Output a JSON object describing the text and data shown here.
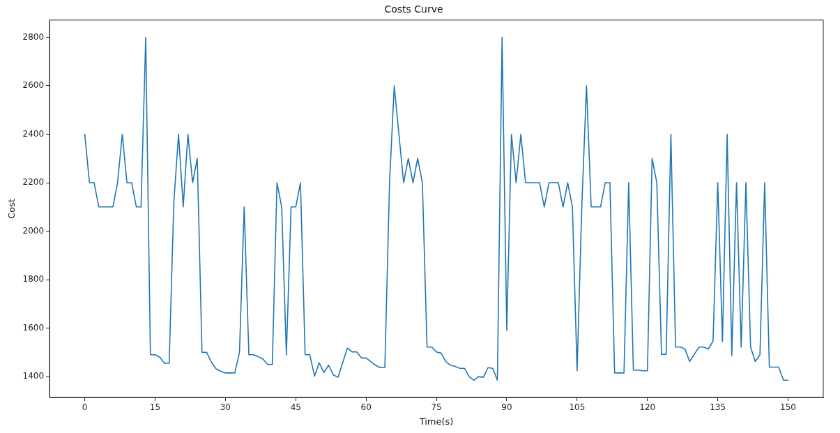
{
  "chart_data": {
    "type": "line",
    "title": "Costs Curve",
    "xlabel": "Time(s)",
    "ylabel": "Cost",
    "x": [
      0,
      1,
      2,
      3,
      4,
      5,
      6,
      7,
      8,
      9,
      10,
      11,
      12,
      13,
      14,
      15,
      16,
      17,
      18,
      19,
      20,
      21,
      22,
      23,
      24,
      25,
      26,
      27,
      28,
      29,
      30,
      31,
      32,
      33,
      34,
      35,
      36,
      37,
      38,
      39,
      40,
      41,
      42,
      43,
      44,
      45,
      46,
      47,
      48,
      49,
      50,
      51,
      52,
      53,
      54,
      55,
      56,
      57,
      58,
      59,
      60,
      61,
      62,
      63,
      64,
      65,
      66,
      67,
      68,
      69,
      70,
      71,
      72,
      73,
      74,
      75,
      76,
      77,
      78,
      79,
      80,
      81,
      82,
      83,
      84,
      85,
      86,
      87,
      88,
      89,
      90,
      91,
      92,
      93,
      94,
      95,
      96,
      97,
      98,
      99,
      100,
      101,
      102,
      103,
      104,
      105,
      106,
      107,
      108,
      109,
      110,
      111,
      112,
      113,
      114,
      115,
      116,
      117,
      118,
      119,
      120,
      121,
      122,
      123,
      124,
      125,
      126,
      127,
      128,
      129,
      130,
      131,
      132,
      133,
      134,
      135,
      136,
      137,
      138,
      139,
      140,
      141,
      142,
      143,
      144,
      145,
      146,
      147,
      148,
      149,
      150
    ],
    "series": [
      {
        "color": "#1f77b4",
        "values": [
          2400,
          2200,
          2200,
          2100,
          2100,
          2100,
          2100,
          2200,
          2400,
          2200,
          2200,
          2100,
          2100,
          2800,
          1490,
          1490,
          1480,
          1455,
          1455,
          2120,
          2400,
          2100,
          2400,
          2200,
          2300,
          1500,
          1500,
          1460,
          1432,
          1422,
          1415,
          1415,
          1415,
          1500,
          2100,
          1490,
          1490,
          1482,
          1472,
          1450,
          1450,
          2200,
          2100,
          1490,
          2100,
          2100,
          2200,
          1490,
          1490,
          1402,
          1457,
          1417,
          1447,
          1407,
          1397,
          1457,
          1517,
          1502,
          1502,
          1477,
          1477,
          1462,
          1447,
          1437,
          1437,
          2200,
          2600,
          2400,
          2200,
          2300,
          2200,
          2300,
          2200,
          1522,
          1522,
          1502,
          1497,
          1462,
          1447,
          1442,
          1434,
          1434,
          1399,
          1385,
          1400,
          1397,
          1437,
          1434,
          1385,
          2800,
          1590,
          2400,
          2200,
          2400,
          2200,
          2200,
          2200,
          2200,
          2100,
          2200,
          2200,
          2200,
          2100,
          2200,
          2100,
          1424,
          2100,
          2600,
          2100,
          2100,
          2100,
          2200,
          2200,
          1415,
          1415,
          1415,
          2200,
          1427,
          1427,
          1424,
          1424,
          2300,
          2200,
          1492,
          1492,
          2400,
          1522,
          1522,
          1515,
          1462,
          1492,
          1522,
          1522,
          1514,
          1547,
          2200,
          1544,
          2400,
          1487,
          2200,
          1522,
          2200,
          1522,
          1462,
          1490,
          2200,
          1439,
          1439,
          1439,
          1385,
          1385
        ]
      }
    ],
    "xlim": [
      -7.5,
      157.5
    ],
    "ylim": [
      1314,
      2871
    ],
    "xticks": [
      0,
      15,
      30,
      45,
      60,
      75,
      90,
      105,
      120,
      135,
      150
    ],
    "yticks": [
      1400,
      1600,
      1800,
      2000,
      2200,
      2400,
      2600,
      2800
    ],
    "grid": false,
    "legend": false,
    "marker": "none",
    "line_style": "solid"
  }
}
